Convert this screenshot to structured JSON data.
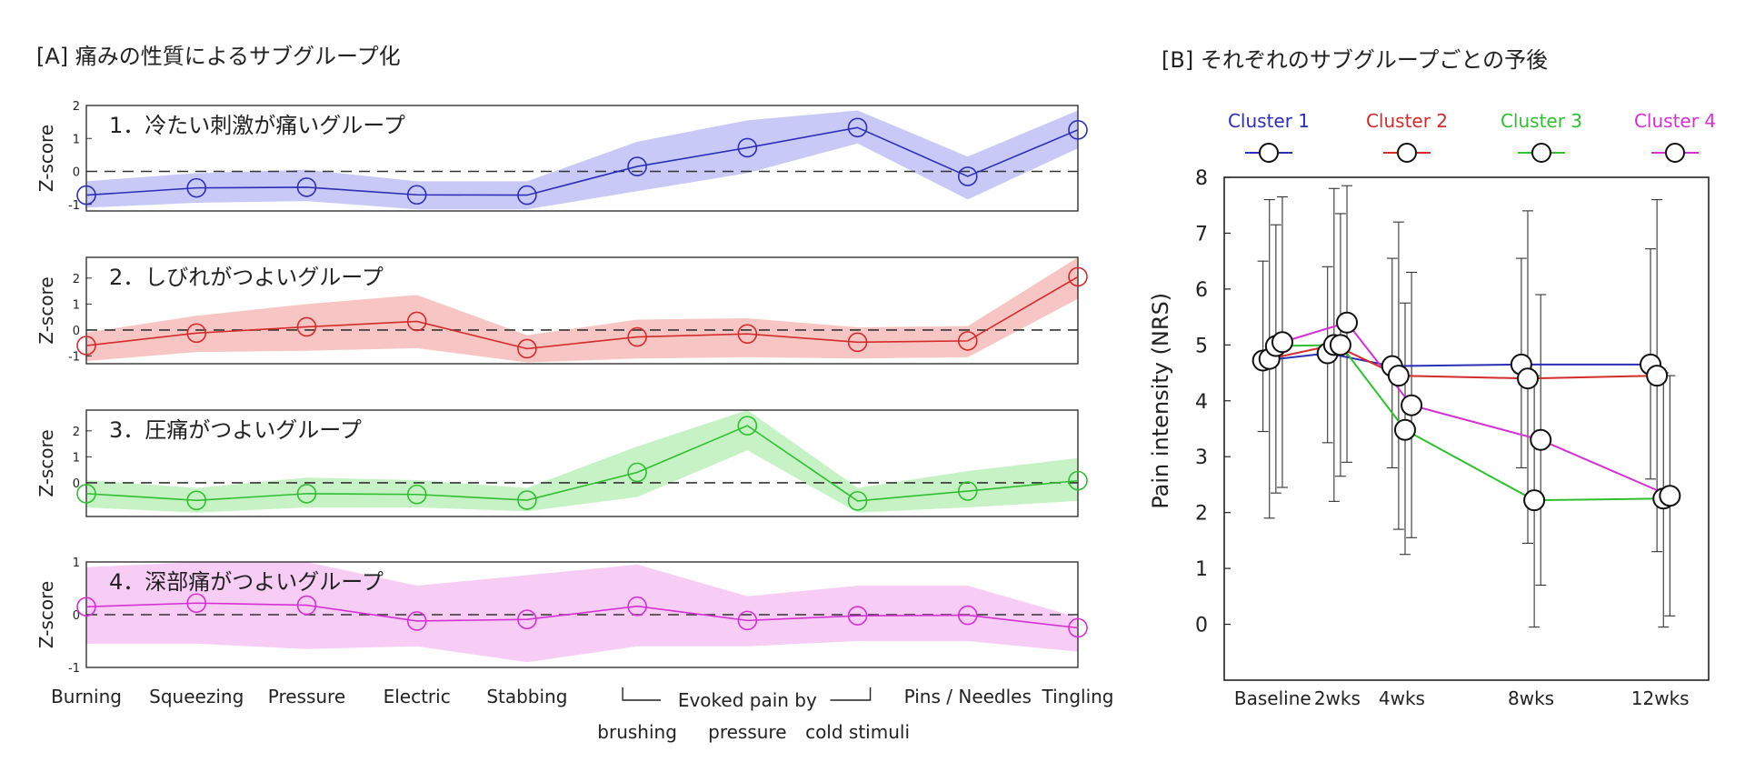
{
  "panel_a": {
    "title": "[A] 痛みの性質によるサブグループ化"
  },
  "panel_b": {
    "title": "[B] それぞれのサブグループごとの予後"
  },
  "chart_data": [
    {
      "type": "line",
      "panel": "A",
      "categories": [
        "Burning",
        "Squeezing",
        "Pressure",
        "Electric",
        "Stabbing",
        "brushing",
        "pressure",
        "cold stimuli",
        "Pins / Needles",
        "Tingling"
      ],
      "category_group_label": "Evoked pain by",
      "grouped_categories": [
        "brushing",
        "pressure",
        "cold stimuli"
      ],
      "ylabel": "Z-score",
      "reference_line": 0,
      "subplots": [
        {
          "title": "1．冷たい刺激が痛いグループ",
          "color": "#2b2fb5",
          "band_color": "#c9c9f7",
          "ylim": [
            -1.2,
            2
          ],
          "yticks": [
            "2",
            "1",
            "0",
            "-1"
          ],
          "values": [
            -0.72,
            -0.5,
            -0.48,
            -0.71,
            -0.72,
            0.15,
            0.72,
            1.33,
            -0.15,
            1.26
          ],
          "band_lower": [
            -1.1,
            -0.95,
            -0.9,
            -1.15,
            -1.15,
            -0.6,
            -0.05,
            0.85,
            -0.85,
            0.7
          ],
          "band_upper": [
            -0.3,
            -0.05,
            0.05,
            -0.3,
            -0.3,
            0.9,
            1.55,
            1.85,
            0.45,
            1.85
          ]
        },
        {
          "title": "2．しびれがつよいグループ",
          "color": "#d42b2b",
          "band_color": "#f7c6c4",
          "ylim": [
            -1.3,
            2.8
          ],
          "yticks": [
            "2",
            "1",
            "0",
            "-1"
          ],
          "values": [
            -0.6,
            -0.12,
            0.12,
            0.33,
            -0.72,
            -0.27,
            -0.15,
            -0.47,
            -0.42,
            2.05
          ],
          "band_lower": [
            -1.2,
            -0.85,
            -0.8,
            -0.7,
            -1.25,
            -1.1,
            -1.05,
            -1.1,
            -1.05,
            1.2
          ],
          "band_upper": [
            -0.1,
            0.55,
            1.0,
            1.35,
            -0.2,
            0.4,
            0.45,
            0.1,
            0.15,
            2.8
          ]
        },
        {
          "title": "3．圧痛がつよいグループ",
          "color": "#2fbf2f",
          "band_color": "#c6f2c6",
          "ylim": [
            -1.3,
            2.8
          ],
          "yticks": [
            "2",
            "1",
            "0"
          ],
          "values": [
            -0.42,
            -0.68,
            -0.42,
            -0.45,
            -0.67,
            0.4,
            2.2,
            -0.7,
            -0.32,
            0.08
          ],
          "band_lower": [
            -0.95,
            -1.15,
            -0.95,
            -0.95,
            -1.1,
            -0.55,
            1.25,
            -1.15,
            -0.95,
            -0.7
          ],
          "band_upper": [
            0.1,
            -0.2,
            0.2,
            0.1,
            -0.2,
            1.4,
            3.0,
            -0.2,
            0.45,
            0.95
          ]
        },
        {
          "title": "4．深部痛がつよいグループ",
          "color": "#d430d4",
          "band_color": "#f7cdf5",
          "ylim": [
            -1,
            1
          ],
          "yticks": [
            "1",
            "0",
            "-1"
          ],
          "values": [
            0.15,
            0.22,
            0.18,
            -0.12,
            -0.09,
            0.16,
            -0.11,
            -0.02,
            -0.01,
            -0.25
          ],
          "band_lower": [
            -0.55,
            -0.55,
            -0.65,
            -0.6,
            -0.9,
            -0.6,
            -0.6,
            -0.5,
            -0.5,
            -0.7
          ],
          "band_upper": [
            0.9,
            1.0,
            1.05,
            0.55,
            0.75,
            0.95,
            0.35,
            0.55,
            0.55,
            -0.05
          ]
        }
      ]
    },
    {
      "type": "line",
      "panel": "B",
      "categories": [
        "Baseline",
        "2wks",
        "4wks",
        "8wks",
        "12wks"
      ],
      "x": [
        0,
        2,
        4,
        8,
        12
      ],
      "xlim": [
        -1.5,
        13.5
      ],
      "ylabel": "Pain intensity (NRS)",
      "ylim": [
        -1,
        8
      ],
      "yticks": [
        0,
        1,
        2,
        3,
        4,
        5,
        6,
        7,
        8
      ],
      "legend_position": "top",
      "series": [
        {
          "name": "Cluster 1",
          "color": "#2b2fb5",
          "values": [
            4.72,
            4.85,
            4.62,
            4.65,
            4.65
          ],
          "err_low": [
            3.45,
            3.25,
            2.8,
            2.8,
            2.6
          ],
          "err_high": [
            6.5,
            6.4,
            6.55,
            6.55,
            6.72
          ],
          "offset": -0.3
        },
        {
          "name": "Cluster 2",
          "color": "#d42b2b",
          "values": [
            4.75,
            5.0,
            4.45,
            4.4,
            4.45
          ],
          "err_low": [
            1.9,
            2.2,
            1.7,
            1.45,
            1.3
          ],
          "err_high": [
            7.6,
            7.8,
            7.2,
            7.4,
            7.6
          ],
          "offset": -0.1
        },
        {
          "name": "Cluster 3",
          "color": "#2fbf2f",
          "values": [
            4.98,
            5.0,
            3.48,
            2.22,
            2.25
          ],
          "err_low": [
            2.35,
            2.65,
            1.25,
            -0.05,
            -0.05
          ],
          "err_high": [
            7.15,
            7.35,
            5.75,
            4.45,
            4.5
          ],
          "offset": 0.1
        },
        {
          "name": "Cluster 4",
          "color": "#d430d4",
          "values": [
            5.05,
            5.4,
            3.92,
            3.3,
            2.3
          ],
          "err_low": [
            2.45,
            2.9,
            1.55,
            0.7,
            0.15
          ],
          "err_high": [
            7.65,
            7.85,
            6.3,
            5.9,
            4.45
          ],
          "offset": 0.3
        }
      ]
    }
  ]
}
